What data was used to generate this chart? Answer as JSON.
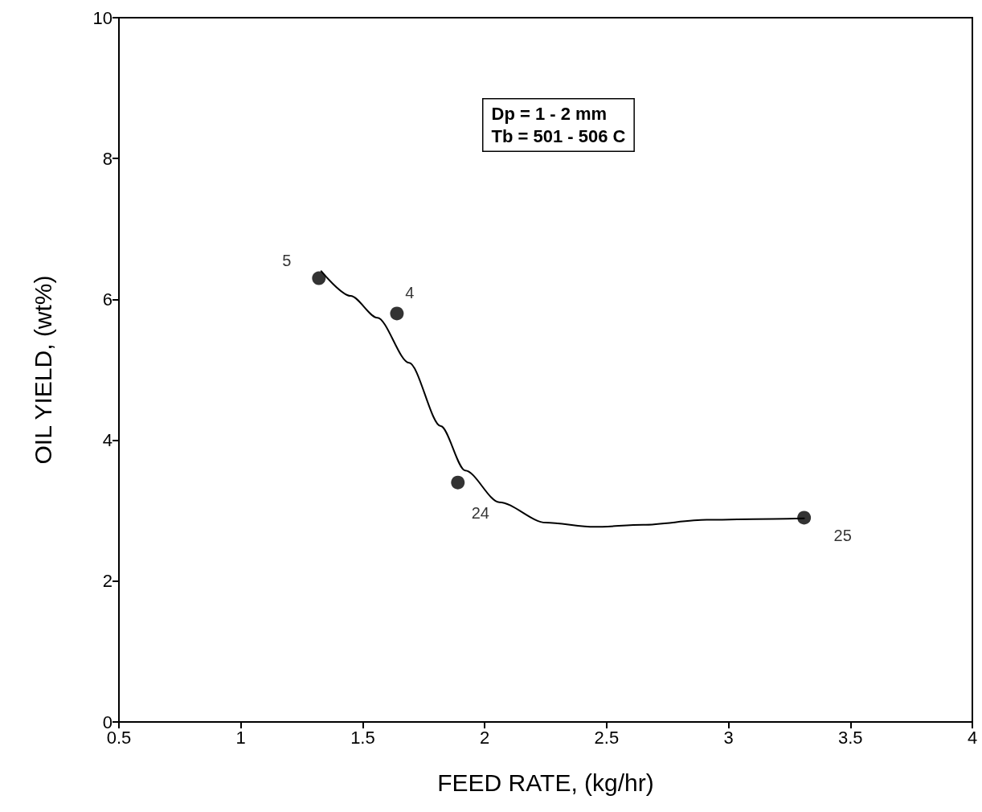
{
  "chart_data": {
    "type": "scatter",
    "xlabel": "FEED RATE, (kg/hr)",
    "ylabel": "OIL YIELD, (wt%)",
    "xlim": [
      0.5,
      4
    ],
    "xticks": [
      0.5,
      1,
      1.5,
      2,
      2.5,
      3,
      3.5,
      4
    ],
    "ylim": [
      0,
      10
    ],
    "yticks": [
      0,
      2,
      4,
      6,
      8,
      10
    ],
    "grid": false,
    "series": [
      {
        "color": "#000000",
        "marker": "circle",
        "x": [
          1.32,
          1.64,
          1.89,
          3.31
        ],
        "values": [
          6.3,
          5.8,
          3.4,
          2.9
        ]
      },
      {
        "type": "line",
        "color": "#000000",
        "marker": "none",
        "line_style": "solid",
        "x": [
          1.33,
          1.45,
          1.56,
          1.69,
          1.82,
          1.92,
          2.06,
          2.25,
          2.45,
          2.65,
          2.91,
          3.1,
          3.31
        ],
        "values": [
          6.4,
          6.05,
          5.74,
          5.1,
          4.2,
          3.57,
          3.12,
          2.83,
          2.77,
          2.8,
          2.87,
          2.88,
          2.89
        ]
      }
    ],
    "annotations": [
      "Dp = 1 - 2 mm",
      "Tb = 501 - 506 C",
      {
        "text": "5",
        "x": 1.32,
        "y": 6.3
      },
      {
        "text": "4",
        "x": 1.64,
        "y": 5.8
      },
      {
        "text": "24",
        "x": 1.89,
        "y": 3.4
      },
      {
        "text": "25",
        "x": 3.31,
        "y": 2.9
      }
    ]
  }
}
